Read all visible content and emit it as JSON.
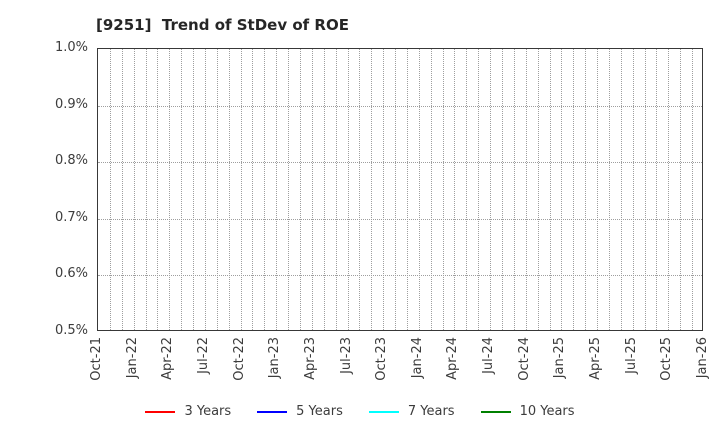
{
  "chart_data": {
    "type": "line",
    "title": "[9251]  Trend of StDev of ROE",
    "xlabel": "",
    "ylabel": "",
    "y_unit": "%",
    "ylim": [
      0.5,
      1.0
    ],
    "y_ticks": [
      {
        "value": 1.0,
        "label": "1.0%"
      },
      {
        "value": 0.9,
        "label": "0.9%"
      },
      {
        "value": 0.8,
        "label": "0.8%"
      },
      {
        "value": 0.7,
        "label": "0.7%"
      },
      {
        "value": 0.6,
        "label": "0.6%"
      },
      {
        "value": 0.5,
        "label": "0.5%"
      }
    ],
    "x_tick_labels": [
      "Oct-21",
      "Jan-22",
      "Apr-22",
      "Jul-22",
      "Oct-22",
      "Jan-23",
      "Apr-23",
      "Jul-23",
      "Oct-23",
      "Jan-24",
      "Apr-24",
      "Jul-24",
      "Oct-24",
      "Jan-25",
      "Apr-25",
      "Jul-25",
      "Oct-25",
      "Jan-26"
    ],
    "x_minor_divisions_per_interval": 3,
    "grid_style": "dotted",
    "grid_on": true,
    "legend_position": "bottom",
    "series": [
      {
        "name": "3 Years",
        "color": "#ff0000",
        "values": []
      },
      {
        "name": "5 Years",
        "color": "#0000ff",
        "values": []
      },
      {
        "name": "7 Years",
        "color": "#00ffff",
        "values": []
      },
      {
        "name": "10 Years",
        "color": "#008000",
        "values": []
      }
    ]
  },
  "colors": {
    "background": "#ffffff",
    "spine": "#383838",
    "grid": "#9e9e9e",
    "tick_text": "#3c3c3c",
    "title_text": "#262626"
  }
}
